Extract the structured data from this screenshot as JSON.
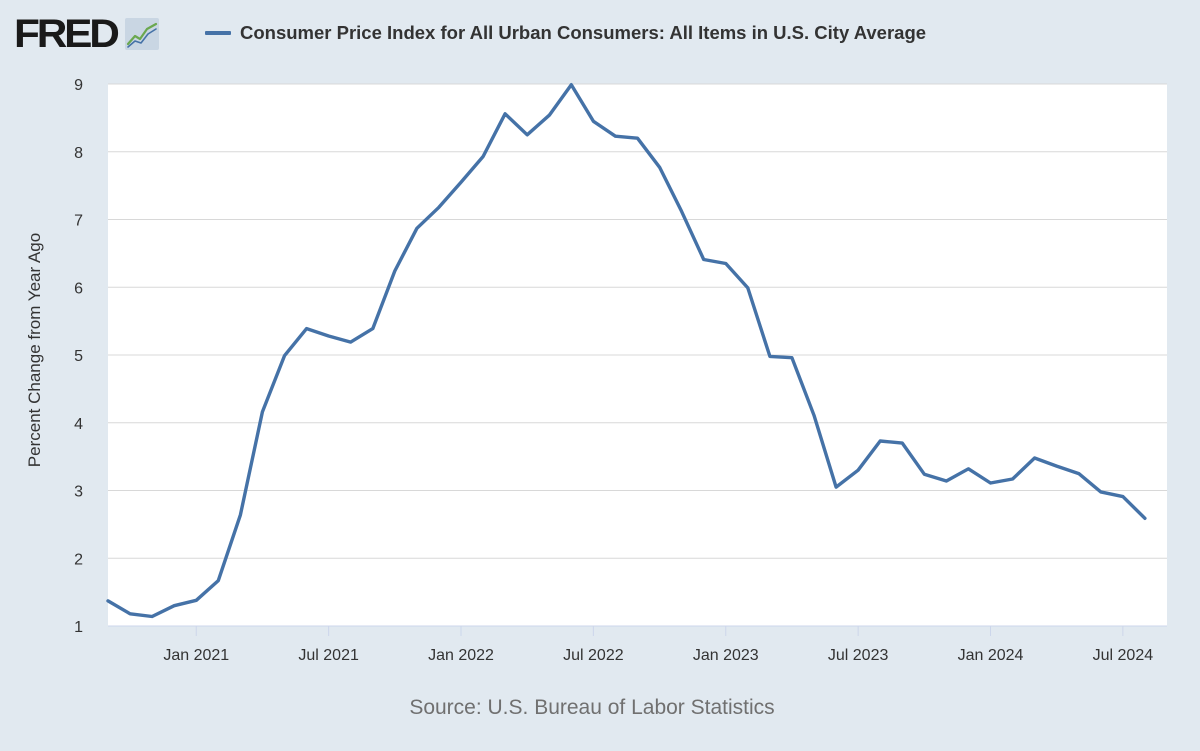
{
  "header": {
    "logo_text": "FRED",
    "logo_icon": "trend-line-icon"
  },
  "colors": {
    "background": "#e1e9f0",
    "plot_background": "#ffffff",
    "series_line": "#4572a7",
    "grid": "#d8d8d8",
    "text": "#333333",
    "source_text": "#707070"
  },
  "source": "Source: U.S. Bureau of Labor Statistics",
  "chart_data": {
    "type": "line",
    "title": "",
    "legend": [
      "Consumer Price Index for All Urban Consumers: All Items in U.S. City Average"
    ],
    "xlabel": "",
    "ylabel": "Percent Change from Year Ago",
    "ylim": [
      1,
      9
    ],
    "yticks": [
      1,
      2,
      3,
      4,
      5,
      6,
      7,
      8,
      9
    ],
    "grid": true,
    "x_start": "2020-09",
    "x_end": "2024-09",
    "x_range_index": [
      0,
      48
    ],
    "xticks": [
      {
        "label": "Jan 2021",
        "index": 4
      },
      {
        "label": "Jul 2021",
        "index": 10
      },
      {
        "label": "Jan 2022",
        "index": 16
      },
      {
        "label": "Jul 2022",
        "index": 22
      },
      {
        "label": "Jan 2023",
        "index": 28
      },
      {
        "label": "Jul 2023",
        "index": 34
      },
      {
        "label": "Jan 2024",
        "index": 40
      },
      {
        "label": "Jul 2024",
        "index": 46
      }
    ],
    "series": [
      {
        "name": "Consumer Price Index for All Urban Consumers: All Items in U.S. City Average",
        "x": [
          "2020-09",
          "2020-10",
          "2020-11",
          "2020-12",
          "2021-01",
          "2021-02",
          "2021-03",
          "2021-04",
          "2021-05",
          "2021-06",
          "2021-07",
          "2021-08",
          "2021-09",
          "2021-10",
          "2021-11",
          "2021-12",
          "2022-01",
          "2022-02",
          "2022-03",
          "2022-04",
          "2022-05",
          "2022-06",
          "2022-07",
          "2022-08",
          "2022-09",
          "2022-10",
          "2022-11",
          "2022-12",
          "2023-01",
          "2023-02",
          "2023-03",
          "2023-04",
          "2023-05",
          "2023-06",
          "2023-07",
          "2023-08",
          "2023-09",
          "2023-10",
          "2023-11",
          "2023-12",
          "2024-01",
          "2024-02",
          "2024-03",
          "2024-04",
          "2024-05",
          "2024-06",
          "2024-07",
          "2024-08"
        ],
        "values": [
          1.37,
          1.18,
          1.14,
          1.3,
          1.38,
          1.67,
          2.64,
          4.16,
          4.99,
          5.39,
          5.28,
          5.19,
          5.39,
          6.24,
          6.87,
          7.18,
          7.55,
          7.93,
          8.56,
          8.25,
          8.54,
          8.99,
          8.45,
          8.23,
          8.2,
          7.77,
          7.12,
          6.41,
          6.35,
          5.99,
          4.98,
          4.96,
          4.11,
          3.05,
          3.3,
          3.73,
          3.7,
          3.24,
          3.14,
          3.32,
          3.11,
          3.17,
          3.48,
          3.36,
          3.25,
          2.98,
          2.91,
          2.59
        ]
      }
    ]
  }
}
